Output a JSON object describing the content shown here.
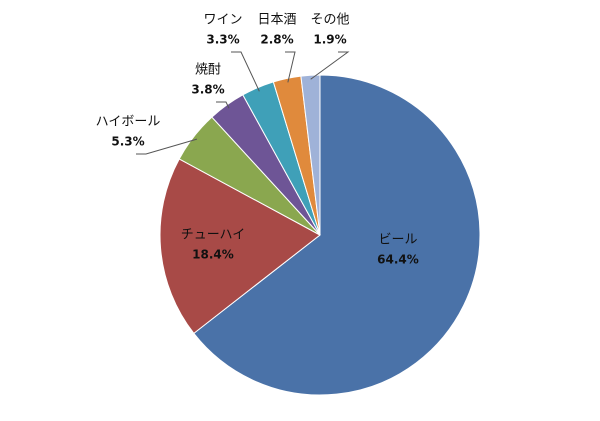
{
  "chart_data": {
    "type": "pie",
    "categories": [
      "ビール",
      "チューハイ",
      "ハイボール",
      "焼酎",
      "ワイン",
      "日本酒",
      "その他"
    ],
    "values": [
      64.4,
      18.4,
      5.3,
      3.8,
      3.3,
      2.8,
      1.9
    ],
    "value_labels": [
      "64.4%",
      "18.4%",
      "5.3%",
      "3.8%",
      "3.3%",
      "2.8%",
      "1.9%"
    ],
    "colors": [
      "#4a72a8",
      "#a84a47",
      "#8aa74f",
      "#6e5596",
      "#3fa0b8",
      "#e08a3c",
      "#9fb2d8"
    ]
  }
}
